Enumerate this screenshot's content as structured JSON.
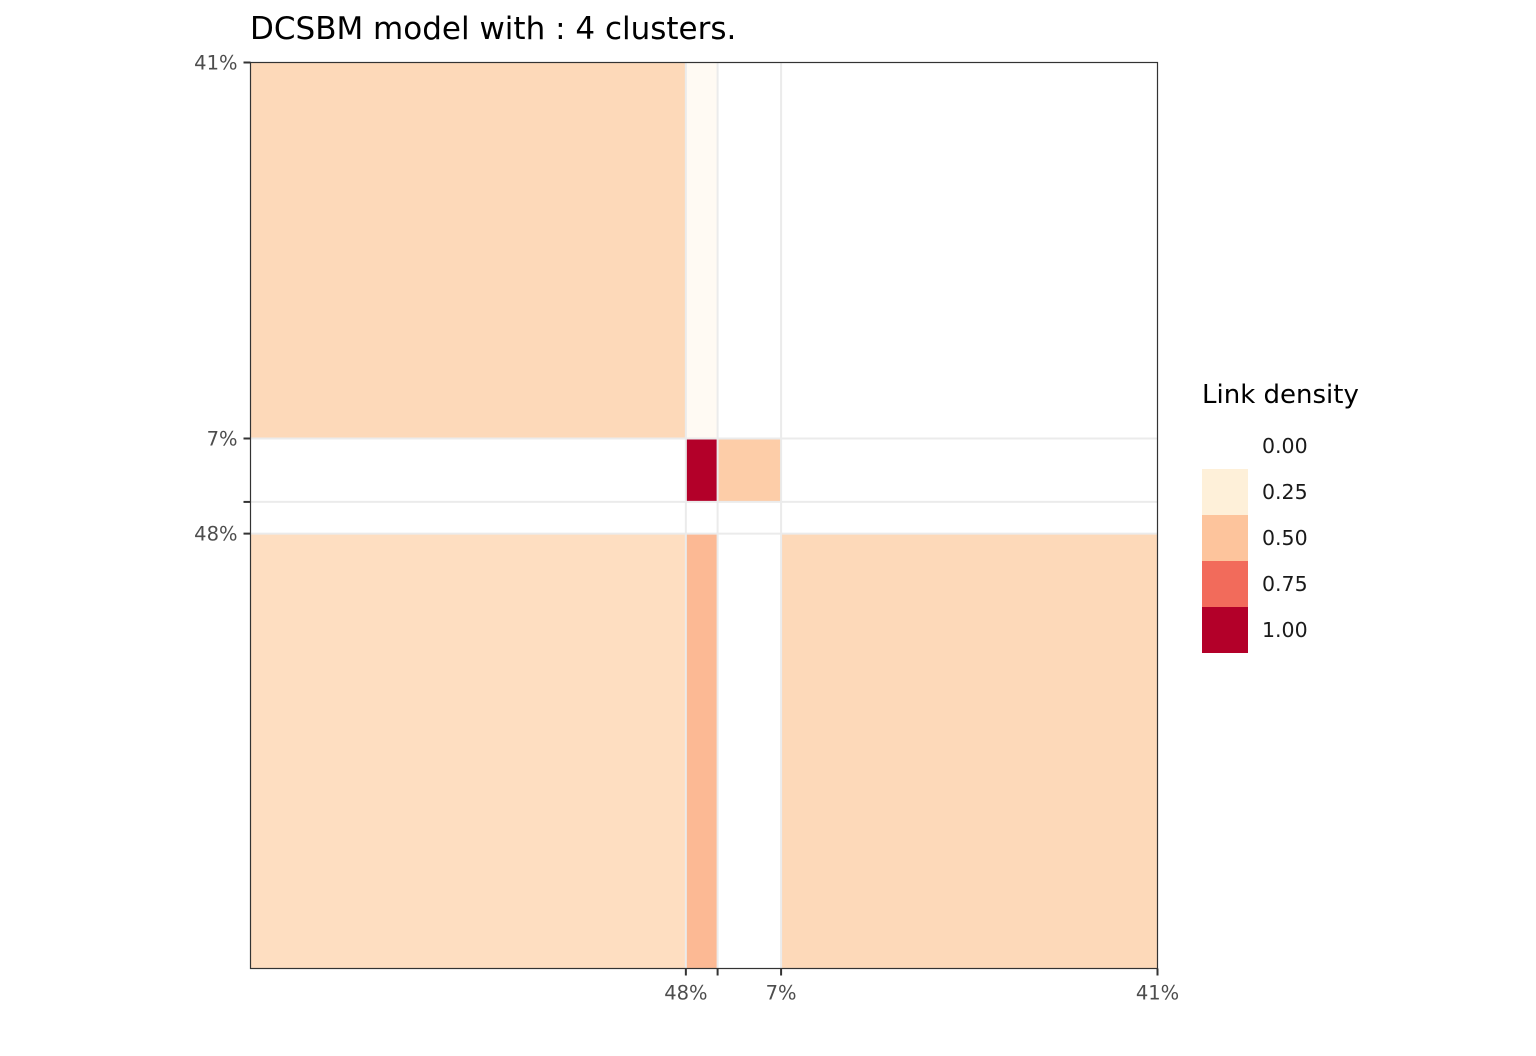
{
  "chart_data": {
    "type": "heatmap",
    "title": "DCSBM model with : 4 clusters.",
    "xlabel": "",
    "ylabel": "",
    "clusters": [
      {
        "size": 0.48,
        "label": "48%"
      },
      {
        "size": 0.035,
        "label": ""
      },
      {
        "size": 0.07,
        "label": "7%"
      },
      {
        "size": 0.415,
        "label": "41%"
      }
    ],
    "x_tick_labels": [
      "48%",
      "",
      "7%",
      "41%"
    ],
    "y_tick_labels": [
      "48%",
      "",
      "7%",
      "41%"
    ],
    "density_matrix": [
      [
        0.35,
        0.53,
        0.0,
        0.38
      ],
      [
        0.0,
        0.0,
        0.0,
        0.0
      ],
      [
        0.0,
        1.0,
        0.45,
        0.0
      ],
      [
        0.38,
        0.08,
        0.0,
        0.0
      ]
    ],
    "grid": true,
    "legend": {
      "title": "Link density",
      "position": "right",
      "labels": [
        "0.00",
        "0.25",
        "0.50",
        "0.75",
        "1.00"
      ],
      "colors": [
        "#ffffff",
        "#fef0d9",
        "#fdc49c",
        "#f26b5b",
        "#b30029"
      ]
    }
  }
}
